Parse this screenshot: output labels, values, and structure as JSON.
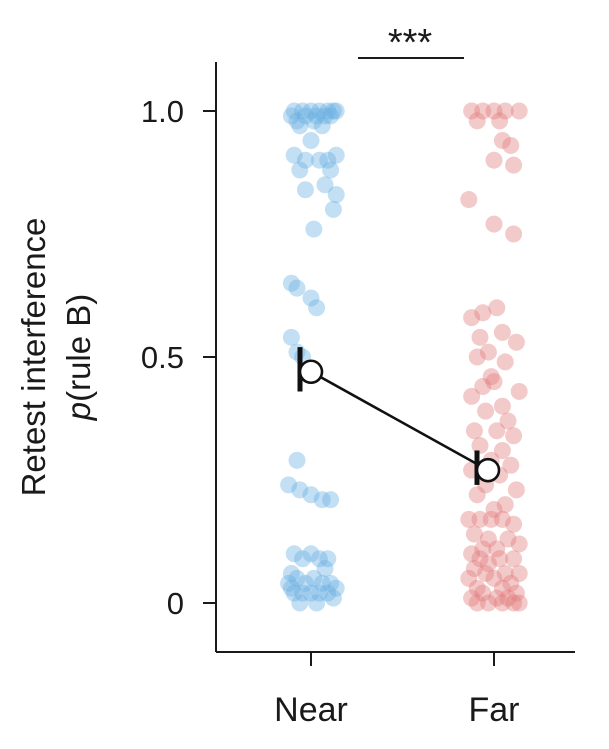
{
  "chart_data": {
    "type": "scatter",
    "title": "",
    "xlabel": "",
    "ylabel_line1": "Retest interference",
    "ylabel_line2_italic": "p",
    "ylabel_line2_rest": "(rule B)",
    "categories": [
      "Near",
      "Far"
    ],
    "yticks": [
      {
        "value": 0,
        "label": "0"
      },
      {
        "value": 0.5,
        "label": "0.5"
      },
      {
        "value": 1.0,
        "label": "1.0"
      }
    ],
    "ylim": [
      -0.1,
      1.1
    ],
    "significance": "***",
    "colors": {
      "Near": "#6aafe0",
      "Far": "#e07a7a",
      "axis": "#1a1a1a"
    },
    "series": [
      {
        "category": "Near",
        "mean": 0.47,
        "error": [
          0.43,
          0.52
        ],
        "points": [
          {
            "x": -0.06,
            "y": 1.0
          },
          {
            "x": -0.03,
            "y": 1.0
          },
          {
            "x": 0.0,
            "y": 1.0
          },
          {
            "x": 0.03,
            "y": 1.0
          },
          {
            "x": 0.06,
            "y": 1.0
          },
          {
            "x": 0.08,
            "y": 1.0
          },
          {
            "x": -0.07,
            "y": 0.99
          },
          {
            "x": -0.02,
            "y": 0.99
          },
          {
            "x": 0.02,
            "y": 0.99
          },
          {
            "x": 0.05,
            "y": 0.99
          },
          {
            "x": 0.07,
            "y": 0.99
          },
          {
            "x": 0.09,
            "y": 1.0
          },
          {
            "x": -0.05,
            "y": 0.98
          },
          {
            "x": 0.01,
            "y": 0.98
          },
          {
            "x": -0.04,
            "y": 0.97
          },
          {
            "x": 0.04,
            "y": 0.97
          },
          {
            "x": 0.0,
            "y": 0.94
          },
          {
            "x": -0.06,
            "y": 0.91
          },
          {
            "x": -0.02,
            "y": 0.9
          },
          {
            "x": 0.03,
            "y": 0.9
          },
          {
            "x": 0.06,
            "y": 0.9
          },
          {
            "x": 0.09,
            "y": 0.91
          },
          {
            "x": -0.04,
            "y": 0.88
          },
          {
            "x": 0.07,
            "y": 0.88
          },
          {
            "x": 0.05,
            "y": 0.85
          },
          {
            "x": -0.02,
            "y": 0.84
          },
          {
            "x": 0.09,
            "y": 0.83
          },
          {
            "x": 0.08,
            "y": 0.8
          },
          {
            "x": 0.01,
            "y": 0.76
          },
          {
            "x": -0.07,
            "y": 0.65
          },
          {
            "x": -0.05,
            "y": 0.64
          },
          {
            "x": 0.0,
            "y": 0.62
          },
          {
            "x": 0.02,
            "y": 0.6
          },
          {
            "x": -0.07,
            "y": 0.54
          },
          {
            "x": -0.05,
            "y": 0.51
          },
          {
            "x": -0.03,
            "y": 0.5
          },
          {
            "x": -0.05,
            "y": 0.29
          },
          {
            "x": -0.08,
            "y": 0.24
          },
          {
            "x": -0.04,
            "y": 0.23
          },
          {
            "x": 0.0,
            "y": 0.22
          },
          {
            "x": 0.04,
            "y": 0.21
          },
          {
            "x": 0.07,
            "y": 0.21
          },
          {
            "x": -0.06,
            "y": 0.1
          },
          {
            "x": -0.03,
            "y": 0.09
          },
          {
            "x": 0.0,
            "y": 0.1
          },
          {
            "x": 0.03,
            "y": 0.09
          },
          {
            "x": 0.06,
            "y": 0.09
          },
          {
            "x": -0.07,
            "y": 0.06
          },
          {
            "x": 0.05,
            "y": 0.07
          },
          {
            "x": -0.08,
            "y": 0.04
          },
          {
            "x": -0.05,
            "y": 0.05
          },
          {
            "x": -0.02,
            "y": 0.04
          },
          {
            "x": 0.01,
            "y": 0.05
          },
          {
            "x": 0.04,
            "y": 0.04
          },
          {
            "x": 0.07,
            "y": 0.04
          },
          {
            "x": 0.09,
            "y": 0.03
          },
          {
            "x": -0.06,
            "y": 0.02
          },
          {
            "x": -0.03,
            "y": 0.02
          },
          {
            "x": 0.0,
            "y": 0.02
          },
          {
            "x": 0.03,
            "y": 0.02
          },
          {
            "x": 0.06,
            "y": 0.02
          },
          {
            "x": -0.04,
            "y": 0.0
          },
          {
            "x": 0.02,
            "y": 0.0
          },
          {
            "x": 0.08,
            "y": 0.01
          },
          {
            "x": -0.07,
            "y": 0.03
          }
        ]
      },
      {
        "category": "Far",
        "mean": 0.27,
        "error": [
          0.24,
          0.31
        ],
        "points": [
          {
            "x": -0.08,
            "y": 1.0
          },
          {
            "x": -0.04,
            "y": 1.0
          },
          {
            "x": 0.0,
            "y": 1.0
          },
          {
            "x": 0.04,
            "y": 1.0
          },
          {
            "x": 0.09,
            "y": 1.0
          },
          {
            "x": -0.06,
            "y": 0.98
          },
          {
            "x": 0.02,
            "y": 0.98
          },
          {
            "x": 0.03,
            "y": 0.94
          },
          {
            "x": 0.06,
            "y": 0.93
          },
          {
            "x": 0.0,
            "y": 0.9
          },
          {
            "x": 0.07,
            "y": 0.89
          },
          {
            "x": -0.09,
            "y": 0.82
          },
          {
            "x": 0.0,
            "y": 0.77
          },
          {
            "x": 0.07,
            "y": 0.75
          },
          {
            "x": 0.01,
            "y": 0.6
          },
          {
            "x": -0.04,
            "y": 0.59
          },
          {
            "x": -0.08,
            "y": 0.58
          },
          {
            "x": 0.03,
            "y": 0.55
          },
          {
            "x": -0.05,
            "y": 0.54
          },
          {
            "x": 0.08,
            "y": 0.53
          },
          {
            "x": -0.02,
            "y": 0.51
          },
          {
            "x": -0.06,
            "y": 0.5
          },
          {
            "x": 0.04,
            "y": 0.49
          },
          {
            "x": -0.01,
            "y": 0.46
          },
          {
            "x": 0.0,
            "y": 0.45
          },
          {
            "x": -0.04,
            "y": 0.44
          },
          {
            "x": 0.09,
            "y": 0.43
          },
          {
            "x": -0.08,
            "y": 0.42
          },
          {
            "x": 0.03,
            "y": 0.4
          },
          {
            "x": -0.03,
            "y": 0.39
          },
          {
            "x": 0.05,
            "y": 0.37
          },
          {
            "x": -0.07,
            "y": 0.35
          },
          {
            "x": 0.01,
            "y": 0.35
          },
          {
            "x": 0.07,
            "y": 0.34
          },
          {
            "x": -0.05,
            "y": 0.32
          },
          {
            "x": 0.03,
            "y": 0.31
          },
          {
            "x": -0.01,
            "y": 0.29
          },
          {
            "x": 0.06,
            "y": 0.28
          },
          {
            "x": -0.08,
            "y": 0.27
          },
          {
            "x": 0.02,
            "y": 0.26
          },
          {
            "x": -0.03,
            "y": 0.24
          },
          {
            "x": 0.08,
            "y": 0.23
          },
          {
            "x": -0.06,
            "y": 0.22
          },
          {
            "x": 0.04,
            "y": 0.2
          },
          {
            "x": 0.0,
            "y": 0.19
          },
          {
            "x": -0.09,
            "y": 0.17
          },
          {
            "x": -0.05,
            "y": 0.17
          },
          {
            "x": -0.01,
            "y": 0.17
          },
          {
            "x": 0.03,
            "y": 0.17
          },
          {
            "x": 0.07,
            "y": 0.16
          },
          {
            "x": -0.07,
            "y": 0.14
          },
          {
            "x": -0.02,
            "y": 0.13
          },
          {
            "x": 0.05,
            "y": 0.13
          },
          {
            "x": 0.09,
            "y": 0.12
          },
          {
            "x": -0.04,
            "y": 0.11
          },
          {
            "x": 0.01,
            "y": 0.11
          },
          {
            "x": -0.08,
            "y": 0.1
          },
          {
            "x": -0.05,
            "y": 0.09
          },
          {
            "x": 0.02,
            "y": 0.09
          },
          {
            "x": 0.07,
            "y": 0.09
          },
          {
            "x": -0.02,
            "y": 0.08
          },
          {
            "x": -0.07,
            "y": 0.07
          },
          {
            "x": 0.04,
            "y": 0.06
          },
          {
            "x": 0.09,
            "y": 0.06
          },
          {
            "x": -0.03,
            "y": 0.06
          },
          {
            "x": -0.09,
            "y": 0.05
          },
          {
            "x": 0.0,
            "y": 0.05
          },
          {
            "x": 0.06,
            "y": 0.04
          },
          {
            "x": -0.06,
            "y": 0.03
          },
          {
            "x": 0.03,
            "y": 0.03
          },
          {
            "x": 0.08,
            "y": 0.02
          },
          {
            "x": -0.04,
            "y": 0.02
          },
          {
            "x": -0.08,
            "y": 0.01
          },
          {
            "x": 0.01,
            "y": 0.01
          },
          {
            "x": 0.05,
            "y": 0.01
          },
          {
            "x": -0.02,
            "y": 0.0
          },
          {
            "x": -0.06,
            "y": 0.0
          },
          {
            "x": 0.03,
            "y": 0.0
          },
          {
            "x": 0.07,
            "y": 0.0
          },
          {
            "x": 0.09,
            "y": 0.0
          }
        ]
      }
    ]
  }
}
